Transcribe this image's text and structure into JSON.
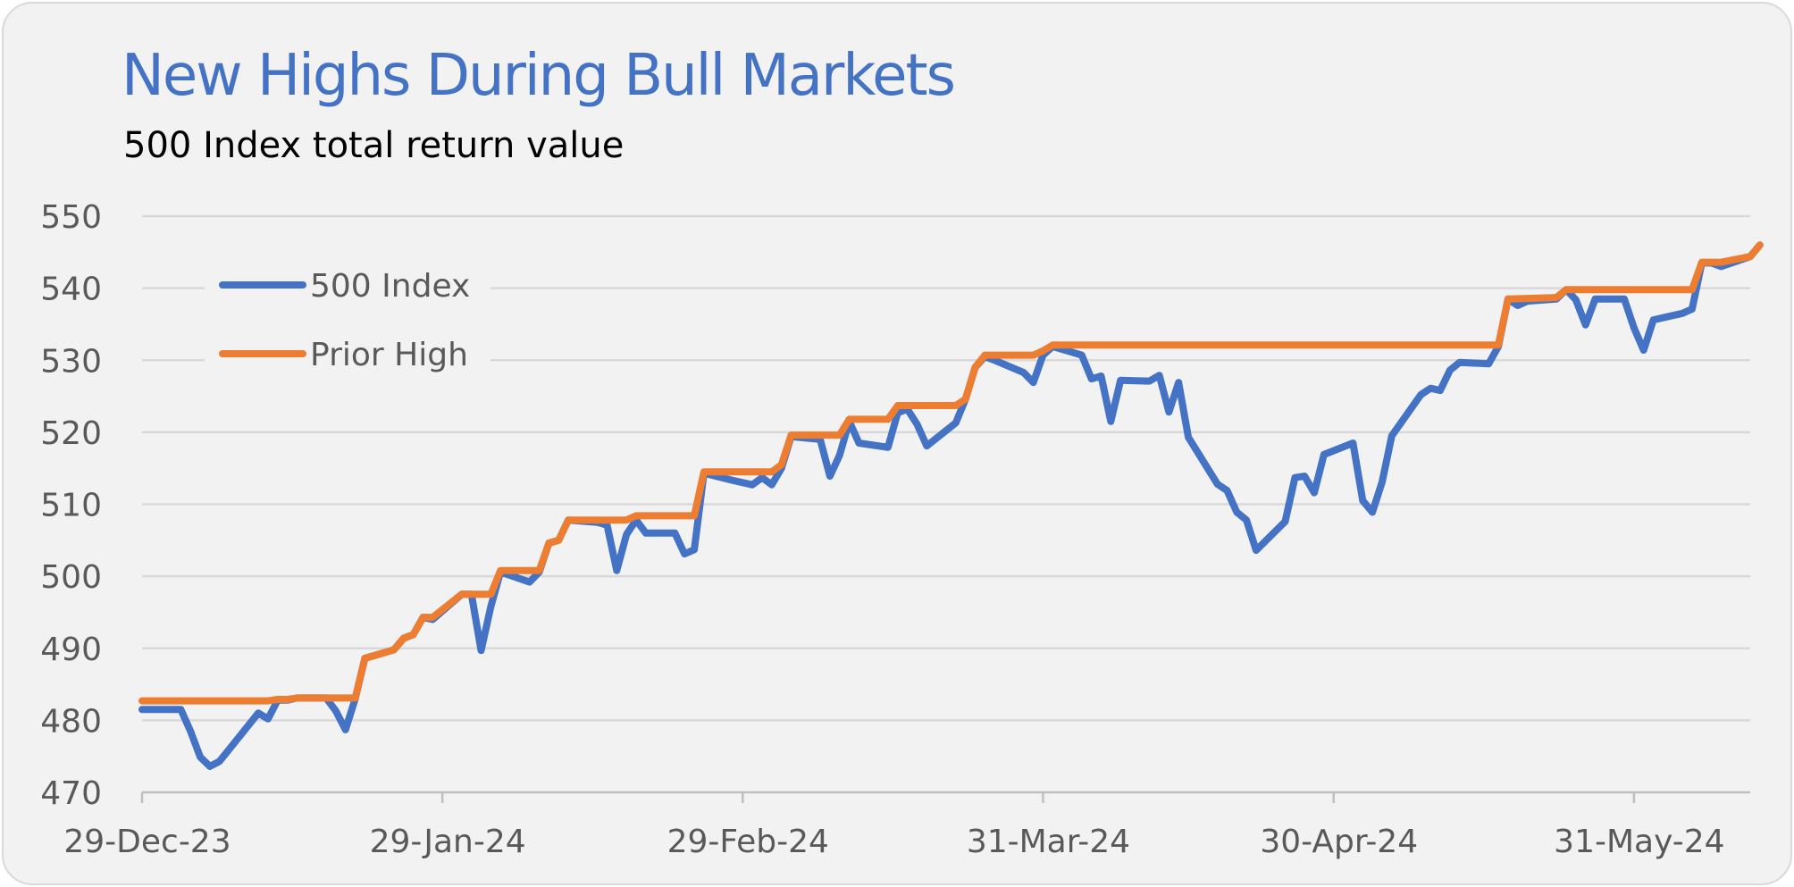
{
  "chart_data": {
    "type": "line",
    "title": "New Highs During Bull Markets",
    "subtitle": "500 Index total return value",
    "xlabel": "",
    "ylabel": "",
    "x_range": [
      "2023-12-29",
      "2024-06-12"
    ],
    "ylim": [
      470,
      550
    ],
    "y_ticks": [
      470,
      480,
      490,
      500,
      510,
      520,
      530,
      540,
      550
    ],
    "x_tick_dates": [
      "2023-12-29",
      "2024-01-29",
      "2024-02-29",
      "2024-03-31",
      "2024-04-30",
      "2024-05-31"
    ],
    "x_tick_labels": [
      "29-Dec-23",
      "29-Jan-24",
      "29-Feb-24",
      "31-Mar-24",
      "30-Apr-24",
      "31-May-24"
    ],
    "grid": "horizontal",
    "legend": "upper-left",
    "colors": {
      "index": "#4472c4",
      "prior_high": "#ed7d31",
      "grid": "#d9d9d9",
      "axis": "#bfbfbf"
    },
    "series": [
      {
        "name": "500 Index",
        "color": "#4472c4",
        "points": [
          [
            "2023-12-29",
            481.5
          ],
          [
            "2024-01-02",
            481.5
          ],
          [
            "2024-01-03",
            478.5
          ],
          [
            "2024-01-04",
            474.9
          ],
          [
            "2024-01-05",
            473.6
          ],
          [
            "2024-01-06",
            474.3
          ],
          [
            "2024-01-10",
            481.0
          ],
          [
            "2024-01-11",
            480.2
          ],
          [
            "2024-01-12",
            482.8
          ],
          [
            "2024-01-13",
            482.8
          ],
          [
            "2024-01-14",
            483.1
          ],
          [
            "2024-01-17",
            483.1
          ],
          [
            "2024-01-18",
            481.3
          ],
          [
            "2024-01-19",
            478.7
          ],
          [
            "2024-01-20",
            483.0
          ],
          [
            "2024-01-21",
            488.6
          ],
          [
            "2024-01-24",
            489.8
          ],
          [
            "2024-01-25",
            491.4
          ],
          [
            "2024-01-26",
            491.9
          ],
          [
            "2024-01-27",
            494.3
          ],
          [
            "2024-01-28",
            494.0
          ],
          [
            "2024-01-31",
            497.5
          ],
          [
            "2024-02-01",
            497.5
          ],
          [
            "2024-02-02",
            489.7
          ],
          [
            "2024-02-03",
            495.8
          ],
          [
            "2024-02-04",
            500.6
          ],
          [
            "2024-02-07",
            499.2
          ],
          [
            "2024-02-08",
            500.6
          ],
          [
            "2024-02-09",
            504.6
          ],
          [
            "2024-02-10",
            505.0
          ],
          [
            "2024-02-11",
            507.8
          ],
          [
            "2024-02-14",
            507.5
          ],
          [
            "2024-02-15",
            507.1
          ],
          [
            "2024-02-16",
            500.8
          ],
          [
            "2024-02-17",
            505.8
          ],
          [
            "2024-02-18",
            507.8
          ],
          [
            "2024-02-19",
            506.0
          ],
          [
            "2024-02-22",
            506.0
          ],
          [
            "2024-02-23",
            503.1
          ],
          [
            "2024-02-24",
            503.7
          ],
          [
            "2024-02-25",
            514.3
          ],
          [
            "2024-02-28",
            513.3
          ],
          [
            "2024-03-01",
            512.7
          ],
          [
            "2024-03-02",
            513.7
          ],
          [
            "2024-03-03",
            512.7
          ],
          [
            "2024-03-04",
            515.0
          ],
          [
            "2024-03-05",
            519.4
          ],
          [
            "2024-03-08",
            519.0
          ],
          [
            "2024-03-09",
            513.9
          ],
          [
            "2024-03-10",
            516.8
          ],
          [
            "2024-03-11",
            521.5
          ],
          [
            "2024-03-12",
            518.5
          ],
          [
            "2024-03-15",
            517.9
          ],
          [
            "2024-03-16",
            522.7
          ],
          [
            "2024-03-17",
            523.2
          ],
          [
            "2024-03-18",
            521.1
          ],
          [
            "2024-03-19",
            518.1
          ],
          [
            "2024-03-22",
            521.3
          ],
          [
            "2024-03-23",
            524.6
          ],
          [
            "2024-03-24",
            529.0
          ],
          [
            "2024-03-25",
            530.5
          ],
          [
            "2024-03-26",
            530.0
          ],
          [
            "2024-03-29",
            528.3
          ],
          [
            "2024-03-30",
            526.9
          ],
          [
            "2024-03-31",
            530.7
          ],
          [
            "2024-04-01",
            531.9
          ],
          [
            "2024-04-04",
            530.7
          ],
          [
            "2024-04-05",
            527.4
          ],
          [
            "2024-04-06",
            527.8
          ],
          [
            "2024-04-07",
            521.5
          ],
          [
            "2024-04-08",
            527.2
          ],
          [
            "2024-04-11",
            527.1
          ],
          [
            "2024-04-12",
            527.9
          ],
          [
            "2024-04-13",
            522.8
          ],
          [
            "2024-04-14",
            526.9
          ],
          [
            "2024-04-15",
            519.3
          ],
          [
            "2024-04-18",
            512.8
          ],
          [
            "2024-04-19",
            511.9
          ],
          [
            "2024-04-20",
            508.9
          ],
          [
            "2024-04-21",
            507.8
          ],
          [
            "2024-04-22",
            503.6
          ],
          [
            "2024-04-25",
            507.6
          ],
          [
            "2024-04-26",
            513.7
          ],
          [
            "2024-04-27",
            513.9
          ],
          [
            "2024-04-28",
            511.6
          ],
          [
            "2024-04-29",
            516.9
          ],
          [
            "2024-05-02",
            518.5
          ],
          [
            "2024-05-03",
            510.5
          ],
          [
            "2024-05-04",
            508.9
          ],
          [
            "2024-05-05",
            513.1
          ],
          [
            "2024-05-06",
            519.5
          ],
          [
            "2024-05-09",
            525.2
          ],
          [
            "2024-05-10",
            526.1
          ],
          [
            "2024-05-11",
            525.8
          ],
          [
            "2024-05-12",
            528.6
          ],
          [
            "2024-05-13",
            529.7
          ],
          [
            "2024-05-16",
            529.5
          ],
          [
            "2024-05-17",
            531.9
          ],
          [
            "2024-05-18",
            538.5
          ],
          [
            "2024-05-19",
            537.6
          ],
          [
            "2024-05-20",
            538.2
          ],
          [
            "2024-05-23",
            538.5
          ],
          [
            "2024-05-24",
            539.8
          ],
          [
            "2024-05-25",
            538.4
          ],
          [
            "2024-05-26",
            534.9
          ],
          [
            "2024-05-27",
            538.5
          ],
          [
            "2024-05-30",
            538.5
          ],
          [
            "2024-05-31",
            534.5
          ],
          [
            "2024-06-01",
            531.4
          ],
          [
            "2024-06-02",
            535.6
          ],
          [
            "2024-06-05",
            536.5
          ],
          [
            "2024-06-06",
            537.1
          ],
          [
            "2024-06-07",
            543.5
          ],
          [
            "2024-06-08",
            543.5
          ],
          [
            "2024-06-09",
            543.0
          ],
          [
            "2024-06-12",
            544.4
          ],
          [
            "2024-06-13",
            546.0
          ]
        ]
      },
      {
        "name": "Prior High",
        "color": "#ed7d31",
        "points": [
          [
            "2023-12-29",
            482.7
          ],
          [
            "2024-01-11",
            482.7
          ],
          [
            "2024-01-12",
            482.9
          ],
          [
            "2024-01-13",
            482.9
          ],
          [
            "2024-01-14",
            483.1
          ],
          [
            "2024-01-20",
            483.1
          ],
          [
            "2024-01-21",
            488.6
          ],
          [
            "2024-01-24",
            489.8
          ],
          [
            "2024-01-25",
            491.4
          ],
          [
            "2024-01-26",
            491.9
          ],
          [
            "2024-01-27",
            494.3
          ],
          [
            "2024-01-28",
            494.3
          ],
          [
            "2024-01-31",
            497.5
          ],
          [
            "2024-02-03",
            497.5
          ],
          [
            "2024-02-04",
            500.8
          ],
          [
            "2024-02-08",
            500.8
          ],
          [
            "2024-02-09",
            504.6
          ],
          [
            "2024-02-10",
            505.0
          ],
          [
            "2024-02-11",
            507.8
          ],
          [
            "2024-02-17",
            507.8
          ],
          [
            "2024-02-18",
            508.4
          ],
          [
            "2024-02-24",
            508.4
          ],
          [
            "2024-02-25",
            514.5
          ],
          [
            "2024-03-03",
            514.5
          ],
          [
            "2024-03-04",
            515.5
          ],
          [
            "2024-03-05",
            519.6
          ],
          [
            "2024-03-10",
            519.6
          ],
          [
            "2024-03-11",
            521.8
          ],
          [
            "2024-03-15",
            521.8
          ],
          [
            "2024-03-16",
            523.7
          ],
          [
            "2024-03-22",
            523.7
          ],
          [
            "2024-03-23",
            524.6
          ],
          [
            "2024-03-24",
            529.0
          ],
          [
            "2024-03-25",
            530.7
          ],
          [
            "2024-03-30",
            530.7
          ],
          [
            "2024-03-31",
            531.3
          ],
          [
            "2024-04-01",
            532.1
          ],
          [
            "2024-05-16",
            532.1
          ],
          [
            "2024-05-17",
            532.1
          ],
          [
            "2024-05-18",
            538.5
          ],
          [
            "2024-05-23",
            538.7
          ],
          [
            "2024-05-24",
            539.8
          ],
          [
            "2024-06-06",
            539.8
          ],
          [
            "2024-06-07",
            543.6
          ],
          [
            "2024-06-09",
            543.6
          ],
          [
            "2024-06-12",
            544.4
          ],
          [
            "2024-06-13",
            546.0
          ]
        ]
      }
    ]
  }
}
